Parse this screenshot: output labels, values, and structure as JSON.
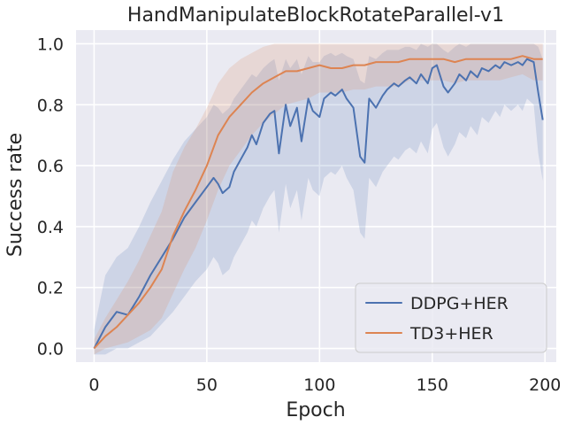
{
  "chart_data": {
    "type": "line",
    "title": "HandManipulateBlockRotateParallel-v1",
    "xlabel": "Epoch",
    "ylabel": "Success rate",
    "xlim": [
      -8,
      205
    ],
    "ylim": [
      -0.045,
      1.045
    ],
    "xticks": [
      0,
      50,
      100,
      150,
      200
    ],
    "yticks": [
      0.0,
      0.2,
      0.4,
      0.6,
      0.8,
      1.0
    ],
    "ytick_labels": [
      "0.0",
      "0.2",
      "0.4",
      "0.6",
      "0.8",
      "1.0"
    ],
    "grid": true,
    "legend_position": "bottom-right",
    "background_color": "#eaeaf2",
    "series": [
      {
        "name": "DDPG+HER",
        "color": "#4c72b0",
        "x": [
          0,
          5,
          10,
          15,
          20,
          25,
          30,
          35,
          40,
          45,
          50,
          53,
          55,
          57,
          60,
          62,
          65,
          68,
          70,
          72,
          75,
          78,
          80,
          82,
          85,
          87,
          90,
          92,
          95,
          97,
          100,
          102,
          105,
          107,
          110,
          112,
          115,
          118,
          120,
          122,
          125,
          128,
          130,
          133,
          135,
          138,
          140,
          143,
          145,
          148,
          150,
          152,
          155,
          157,
          160,
          162,
          165,
          167,
          170,
          172,
          175,
          178,
          180,
          182,
          185,
          188,
          190,
          192,
          195,
          197,
          199
        ],
        "values": [
          0.0,
          0.07,
          0.12,
          0.11,
          0.17,
          0.24,
          0.3,
          0.36,
          0.43,
          0.48,
          0.53,
          0.56,
          0.54,
          0.51,
          0.53,
          0.58,
          0.62,
          0.66,
          0.7,
          0.67,
          0.74,
          0.77,
          0.78,
          0.64,
          0.8,
          0.73,
          0.79,
          0.68,
          0.82,
          0.78,
          0.76,
          0.82,
          0.84,
          0.83,
          0.85,
          0.82,
          0.79,
          0.63,
          0.61,
          0.82,
          0.79,
          0.83,
          0.85,
          0.87,
          0.86,
          0.88,
          0.89,
          0.87,
          0.9,
          0.87,
          0.92,
          0.93,
          0.86,
          0.84,
          0.87,
          0.9,
          0.88,
          0.91,
          0.89,
          0.92,
          0.91,
          0.93,
          0.92,
          0.94,
          0.93,
          0.94,
          0.93,
          0.95,
          0.94,
          0.84,
          0.75
        ],
        "upper": [
          0.06,
          0.24,
          0.3,
          0.33,
          0.4,
          0.48,
          0.55,
          0.62,
          0.68,
          0.72,
          0.76,
          0.8,
          0.79,
          0.77,
          0.79,
          0.82,
          0.85,
          0.88,
          0.9,
          0.89,
          0.92,
          0.94,
          0.95,
          0.88,
          0.95,
          0.92,
          0.95,
          0.9,
          0.96,
          0.94,
          0.94,
          0.96,
          0.97,
          0.96,
          0.97,
          0.96,
          0.95,
          0.88,
          0.87,
          0.96,
          0.95,
          0.97,
          0.98,
          0.98,
          0.98,
          0.99,
          0.99,
          0.98,
          1.0,
          0.99,
          1.0,
          1.0,
          0.98,
          0.97,
          0.99,
          1.0,
          0.99,
          1.0,
          1.0,
          1.0,
          1.0,
          1.0,
          1.0,
          1.0,
          1.0,
          1.0,
          1.0,
          1.0,
          1.0,
          0.99,
          0.95
        ],
        "lower": [
          -0.02,
          -0.02,
          0.0,
          0.0,
          0.02,
          0.04,
          0.08,
          0.12,
          0.17,
          0.22,
          0.26,
          0.3,
          0.28,
          0.24,
          0.26,
          0.3,
          0.34,
          0.38,
          0.42,
          0.4,
          0.46,
          0.5,
          0.52,
          0.38,
          0.54,
          0.46,
          0.52,
          0.42,
          0.56,
          0.52,
          0.5,
          0.56,
          0.58,
          0.57,
          0.6,
          0.56,
          0.52,
          0.38,
          0.36,
          0.56,
          0.53,
          0.58,
          0.6,
          0.63,
          0.62,
          0.65,
          0.66,
          0.64,
          0.68,
          0.64,
          0.72,
          0.74,
          0.66,
          0.63,
          0.67,
          0.71,
          0.69,
          0.73,
          0.7,
          0.76,
          0.74,
          0.78,
          0.76,
          0.8,
          0.78,
          0.8,
          0.78,
          0.82,
          0.8,
          0.64,
          0.55
        ]
      },
      {
        "name": "TD3+HER",
        "color": "#dd8452",
        "x": [
          0,
          5,
          10,
          15,
          20,
          25,
          30,
          35,
          40,
          45,
          50,
          55,
          60,
          65,
          70,
          75,
          80,
          85,
          90,
          95,
          100,
          105,
          110,
          115,
          120,
          125,
          130,
          135,
          140,
          145,
          150,
          155,
          160,
          165,
          170,
          175,
          180,
          185,
          190,
          195,
          199
        ],
        "values": [
          0.0,
          0.04,
          0.07,
          0.11,
          0.15,
          0.2,
          0.26,
          0.37,
          0.45,
          0.52,
          0.6,
          0.7,
          0.76,
          0.8,
          0.84,
          0.87,
          0.89,
          0.91,
          0.91,
          0.92,
          0.93,
          0.92,
          0.92,
          0.93,
          0.93,
          0.94,
          0.94,
          0.94,
          0.95,
          0.95,
          0.95,
          0.95,
          0.94,
          0.95,
          0.95,
          0.95,
          0.95,
          0.95,
          0.96,
          0.95,
          0.95
        ],
        "upper": [
          0.03,
          0.1,
          0.16,
          0.22,
          0.29,
          0.37,
          0.45,
          0.58,
          0.66,
          0.72,
          0.79,
          0.87,
          0.92,
          0.95,
          0.97,
          0.99,
          1.0,
          1.0,
          1.0,
          1.0,
          1.0,
          1.0,
          1.0,
          1.0,
          1.0,
          1.0,
          1.0,
          1.0,
          1.0,
          1.0,
          1.0,
          1.0,
          1.0,
          1.0,
          1.0,
          1.0,
          1.0,
          1.0,
          1.0,
          1.0,
          1.0
        ],
        "lower": [
          -0.02,
          0.0,
          0.01,
          0.02,
          0.04,
          0.06,
          0.1,
          0.18,
          0.26,
          0.33,
          0.42,
          0.52,
          0.6,
          0.65,
          0.7,
          0.74,
          0.77,
          0.8,
          0.81,
          0.82,
          0.84,
          0.84,
          0.84,
          0.85,
          0.85,
          0.86,
          0.86,
          0.86,
          0.88,
          0.88,
          0.88,
          0.88,
          0.87,
          0.88,
          0.88,
          0.88,
          0.88,
          0.89,
          0.9,
          0.88,
          0.88
        ]
      }
    ]
  }
}
